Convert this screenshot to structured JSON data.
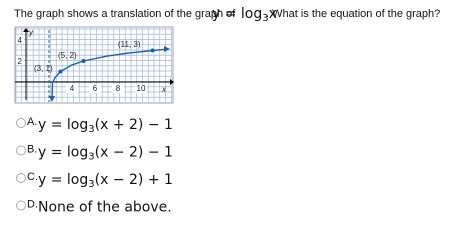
{
  "question": {
    "before": "The graph shows a translation of the graph of",
    "fn": [
      "y = log",
      "3",
      "x"
    ],
    "after": ". What is the equation of the graph?"
  },
  "graph": {
    "x_label": "x",
    "y_label": "y",
    "xticks": [
      4,
      6,
      8,
      10
    ],
    "yticks": [
      2,
      4
    ],
    "points": [
      "(3, 1)",
      "(5, 2)",
      "(11, 3)"
    ]
  },
  "options": [
    {
      "letter": "A.",
      "expr": [
        "y = log",
        "3",
        "(x + 2) − 1"
      ]
    },
    {
      "letter": "B.",
      "expr": [
        "y = log",
        "3",
        "(x − 2) − 1"
      ]
    },
    {
      "letter": "C.",
      "expr": [
        "y = log",
        "3",
        "(x − 2) + 1"
      ]
    },
    {
      "letter": "D.",
      "text": "None of the above."
    }
  ]
}
